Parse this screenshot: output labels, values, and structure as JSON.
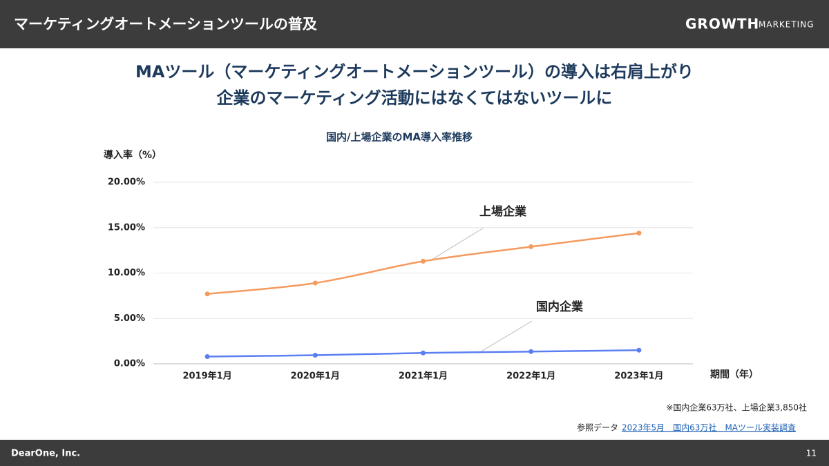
{
  "header": {
    "title": "マーケティングオートメーションツールの普及",
    "logo": "GROWTH",
    "logo_sub": "MARKETING"
  },
  "headline": [
    "MAツール（マーケティングオートメーションツール）の導入は右肩上がり",
    "企業のマーケティング活動にはなくてはないツールに"
  ],
  "chart_data": {
    "type": "line",
    "title": "国内/上場企業のMA導入率推移",
    "y_label": "導入率（%）",
    "x_label": "期間（年）",
    "categories": [
      "2019年1月",
      "2020年1月",
      "2021年1月",
      "2022年1月",
      "2023年1月"
    ],
    "series": [
      {
        "name": "上場企業",
        "color": "#f59a5e",
        "values": [
          7.7,
          8.9,
          11.3,
          12.9,
          14.4
        ]
      },
      {
        "name": "国内企業",
        "color": "#5b7ff2",
        "values": [
          0.8,
          0.95,
          1.2,
          1.35,
          1.5
        ]
      }
    ],
    "ylim": [
      0,
      20
    ],
    "yticks": [
      {
        "value": 0,
        "label": "0.00%"
      },
      {
        "value": 5,
        "label": "5.00%"
      },
      {
        "value": 10,
        "label": "10.00%"
      },
      {
        "value": 15,
        "label": "15.00%"
      },
      {
        "value": 20,
        "label": "20.00%"
      }
    ],
    "grid": true
  },
  "footnote": "※国内企業63万社、上場企業3,850社",
  "source": {
    "prefix": "参照データ",
    "link": "2023年5月　国内63万社　MAツール実装調査"
  },
  "footer": {
    "company": "DearOne, Inc.",
    "page": "11"
  }
}
